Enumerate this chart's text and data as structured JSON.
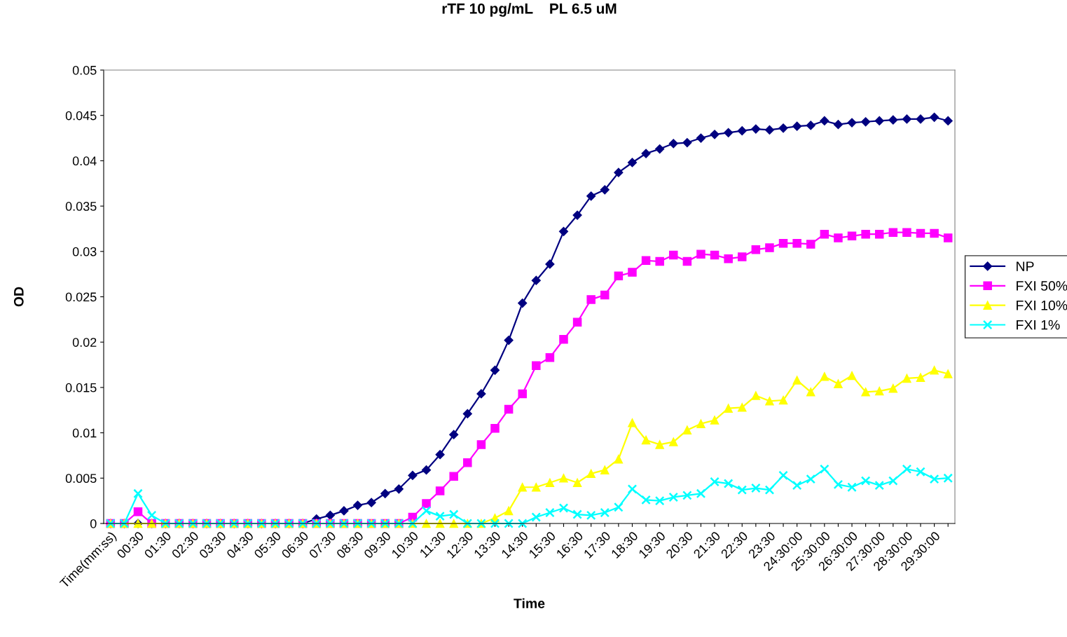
{
  "chart_data": {
    "type": "line",
    "title": "rTF 10 pg/mL    PL 6.5 uM",
    "xlabel": "Time",
    "ylabel": "OD",
    "categories": [
      "Time(mm:ss)",
      null,
      "00:30",
      null,
      "01:30",
      null,
      "02:30",
      null,
      "03:30",
      null,
      "04:30",
      null,
      "05:30",
      null,
      "06:30",
      null,
      "07:30",
      null,
      "08:30",
      null,
      "09:30",
      null,
      "10:30",
      null,
      "11:30",
      null,
      "12:30",
      null,
      "13:30",
      null,
      "14:30",
      null,
      "15:30",
      null,
      "16:30",
      null,
      "17:30",
      null,
      "18:30",
      null,
      "19:30",
      null,
      "20:30",
      null,
      "21:30",
      null,
      "22:30",
      null,
      "23:30",
      null,
      "24:30:00",
      null,
      "25:30:00",
      null,
      "26:30:00",
      null,
      "27:30:00",
      null,
      "28:30:00",
      null,
      "29:30:00",
      null
    ],
    "ylim": [
      0,
      0.05
    ],
    "yticks": [
      0,
      0.005,
      0.01,
      0.015,
      0.02,
      0.025,
      0.03,
      0.035,
      0.04,
      0.045,
      0.05
    ],
    "grid": false,
    "legend": "right",
    "line_style": "solid",
    "series": [
      {
        "name": "NP",
        "color": "#000080",
        "marker": "diamond",
        "values": [
          0,
          0,
          0,
          0,
          0,
          0,
          0,
          0,
          0,
          0,
          0,
          0,
          0,
          0,
          0,
          0.0005,
          0.0009,
          0.0014,
          0.002,
          0.0023,
          0.0033,
          0.0038,
          0.0053,
          0.0059,
          0.0076,
          0.0098,
          0.0121,
          0.0143,
          0.0169,
          0.0202,
          0.0243,
          0.0268,
          0.0286,
          0.0322,
          0.034,
          0.0361,
          0.0368,
          0.0387,
          0.0398,
          0.0408,
          0.0413,
          0.0419,
          0.042,
          0.0425,
          0.0429,
          0.0431,
          0.0433,
          0.0435,
          0.0434,
          0.0436,
          0.0438,
          0.0439,
          0.0444,
          0.044,
          0.0442,
          0.0443,
          0.0444,
          0.0445,
          0.0446,
          0.0446,
          0.0448,
          0.0444
        ]
      },
      {
        "name": "FXI 50%",
        "color": "#ff00ff",
        "marker": "square",
        "values": [
          0,
          0,
          0.0013,
          0,
          0,
          0,
          0,
          0,
          0,
          0,
          0,
          0,
          0,
          0,
          0,
          0,
          0,
          0,
          0,
          0,
          0,
          0,
          0.0007,
          0.0022,
          0.0036,
          0.0052,
          0.0067,
          0.0087,
          0.0105,
          0.0126,
          0.0143,
          0.0174,
          0.0183,
          0.0203,
          0.0222,
          0.0247,
          0.0252,
          0.0273,
          0.0277,
          0.029,
          0.0289,
          0.0296,
          0.0289,
          0.0297,
          0.0296,
          0.0292,
          0.0294,
          0.0302,
          0.0304,
          0.0309,
          0.0309,
          0.0308,
          0.0319,
          0.0315,
          0.0317,
          0.0319,
          0.0319,
          0.0321,
          0.0321,
          0.032,
          0.032,
          0.0315
        ]
      },
      {
        "name": "FXI 10%",
        "color": "#ffff00",
        "marker": "triangle",
        "values": [
          0,
          0,
          0,
          0,
          0,
          0,
          0,
          0,
          0,
          0,
          0,
          0,
          0,
          0,
          0,
          0,
          0,
          0,
          0,
          0,
          0,
          0,
          0,
          0,
          0,
          0,
          0,
          0,
          0.0006,
          0.0014,
          0.004,
          0.004,
          0.0045,
          0.005,
          0.0045,
          0.0055,
          0.0059,
          0.0071,
          0.0111,
          0.0092,
          0.0087,
          0.009,
          0.0103,
          0.011,
          0.0114,
          0.0127,
          0.0128,
          0.0141,
          0.0135,
          0.0136,
          0.0158,
          0.0145,
          0.0162,
          0.0154,
          0.0163,
          0.0145,
          0.0146,
          0.0149,
          0.016,
          0.0161,
          0.0169,
          0.0165
        ]
      },
      {
        "name": "FXI 1%",
        "color": "#00ffff",
        "marker": "cross",
        "values": [
          0,
          0,
          0.0033,
          0.0009,
          0,
          0,
          0,
          0,
          0,
          0,
          0,
          0,
          0,
          0,
          0,
          0,
          0,
          0,
          0,
          0,
          0,
          0,
          0,
          0.0014,
          0.0008,
          0.001,
          0,
          0,
          0,
          0,
          0,
          0.0007,
          0.0012,
          0.0017,
          0.001,
          0.0009,
          0.0012,
          0.0018,
          0.0038,
          0.0026,
          0.0025,
          0.0029,
          0.0031,
          0.0033,
          0.0046,
          0.0044,
          0.0037,
          0.0039,
          0.0037,
          0.0053,
          0.0042,
          0.0049,
          0.006,
          0.0043,
          0.004,
          0.0047,
          0.0042,
          0.0047,
          0.006,
          0.0057,
          0.0049,
          0.005
        ]
      }
    ]
  }
}
